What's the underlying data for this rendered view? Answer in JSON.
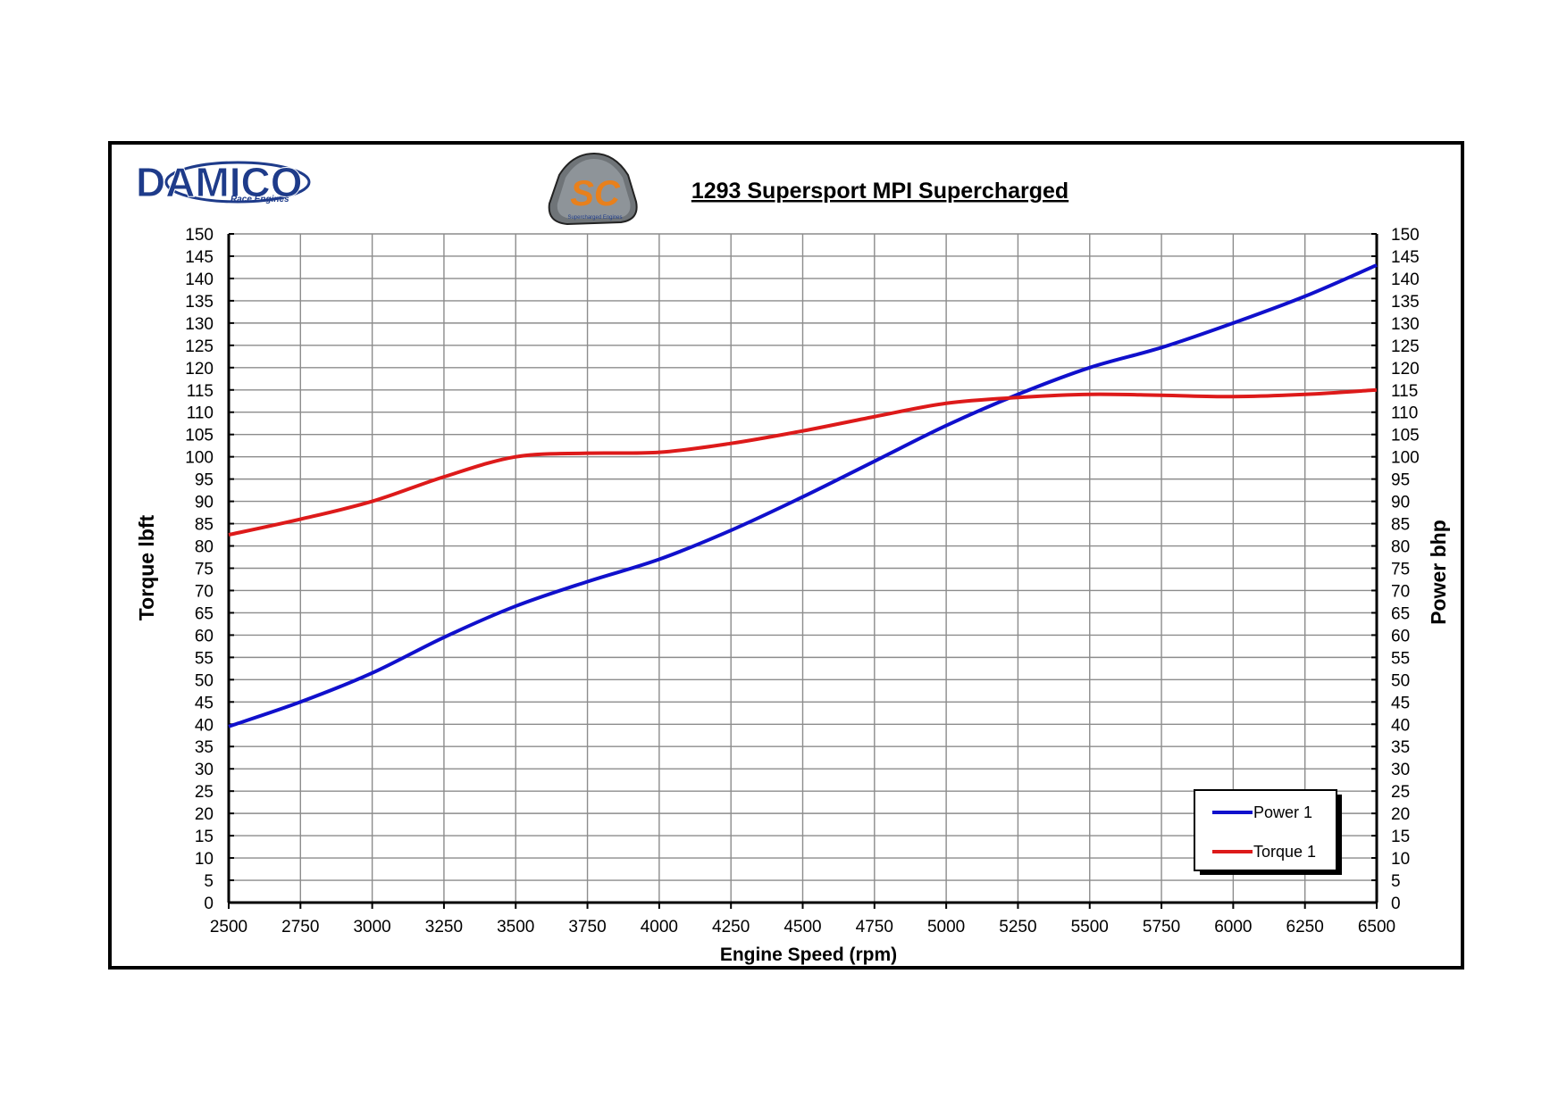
{
  "logos": {
    "brand_main": "DAMICO",
    "brand_sub": "Race Engines",
    "badge_letters": "SC",
    "badge_small": "Supercharged Engines"
  },
  "chart_data": {
    "type": "line",
    "title": "1293 Supersport MPI Supercharged",
    "xlabel": "Engine Speed (rpm)",
    "ylabel_left": "Torque lbft",
    "ylabel_right": "Power bhp",
    "xlim": [
      2500,
      6500
    ],
    "ylim": [
      0,
      150
    ],
    "x_ticks": [
      2500,
      2750,
      3000,
      3250,
      3500,
      3750,
      4000,
      4250,
      4500,
      4750,
      5000,
      5250,
      5500,
      5750,
      6000,
      6250,
      6500
    ],
    "y_ticks": [
      0,
      5,
      10,
      15,
      20,
      25,
      30,
      35,
      40,
      45,
      50,
      55,
      60,
      65,
      70,
      75,
      80,
      85,
      90,
      95,
      100,
      105,
      110,
      115,
      120,
      125,
      130,
      135,
      140,
      145,
      150
    ],
    "grid": true,
    "legend": "bottom-right",
    "series": [
      {
        "name": "Power 1",
        "color": "#1010cc",
        "x": [
          2500,
          2750,
          3000,
          3250,
          3500,
          3750,
          4000,
          4250,
          4500,
          4750,
          5000,
          5250,
          5500,
          5750,
          6000,
          6250,
          6500
        ],
        "values": [
          39.5,
          45,
          51.5,
          59.5,
          66.5,
          72,
          77,
          83.5,
          91,
          99,
          107,
          114,
          120,
          124.5,
          130,
          136,
          143
        ]
      },
      {
        "name": "Torque 1",
        "color": "#dd1a1a",
        "x": [
          2500,
          2750,
          3000,
          3250,
          3500,
          3750,
          4000,
          4250,
          4500,
          4750,
          5000,
          5250,
          5500,
          5750,
          6000,
          6250,
          6500
        ],
        "values": [
          82.5,
          86,
          90,
          95.5,
          100,
          100.8,
          101,
          103,
          105.8,
          109,
          112,
          113.3,
          114,
          113.8,
          113.5,
          114,
          115
        ]
      }
    ]
  }
}
